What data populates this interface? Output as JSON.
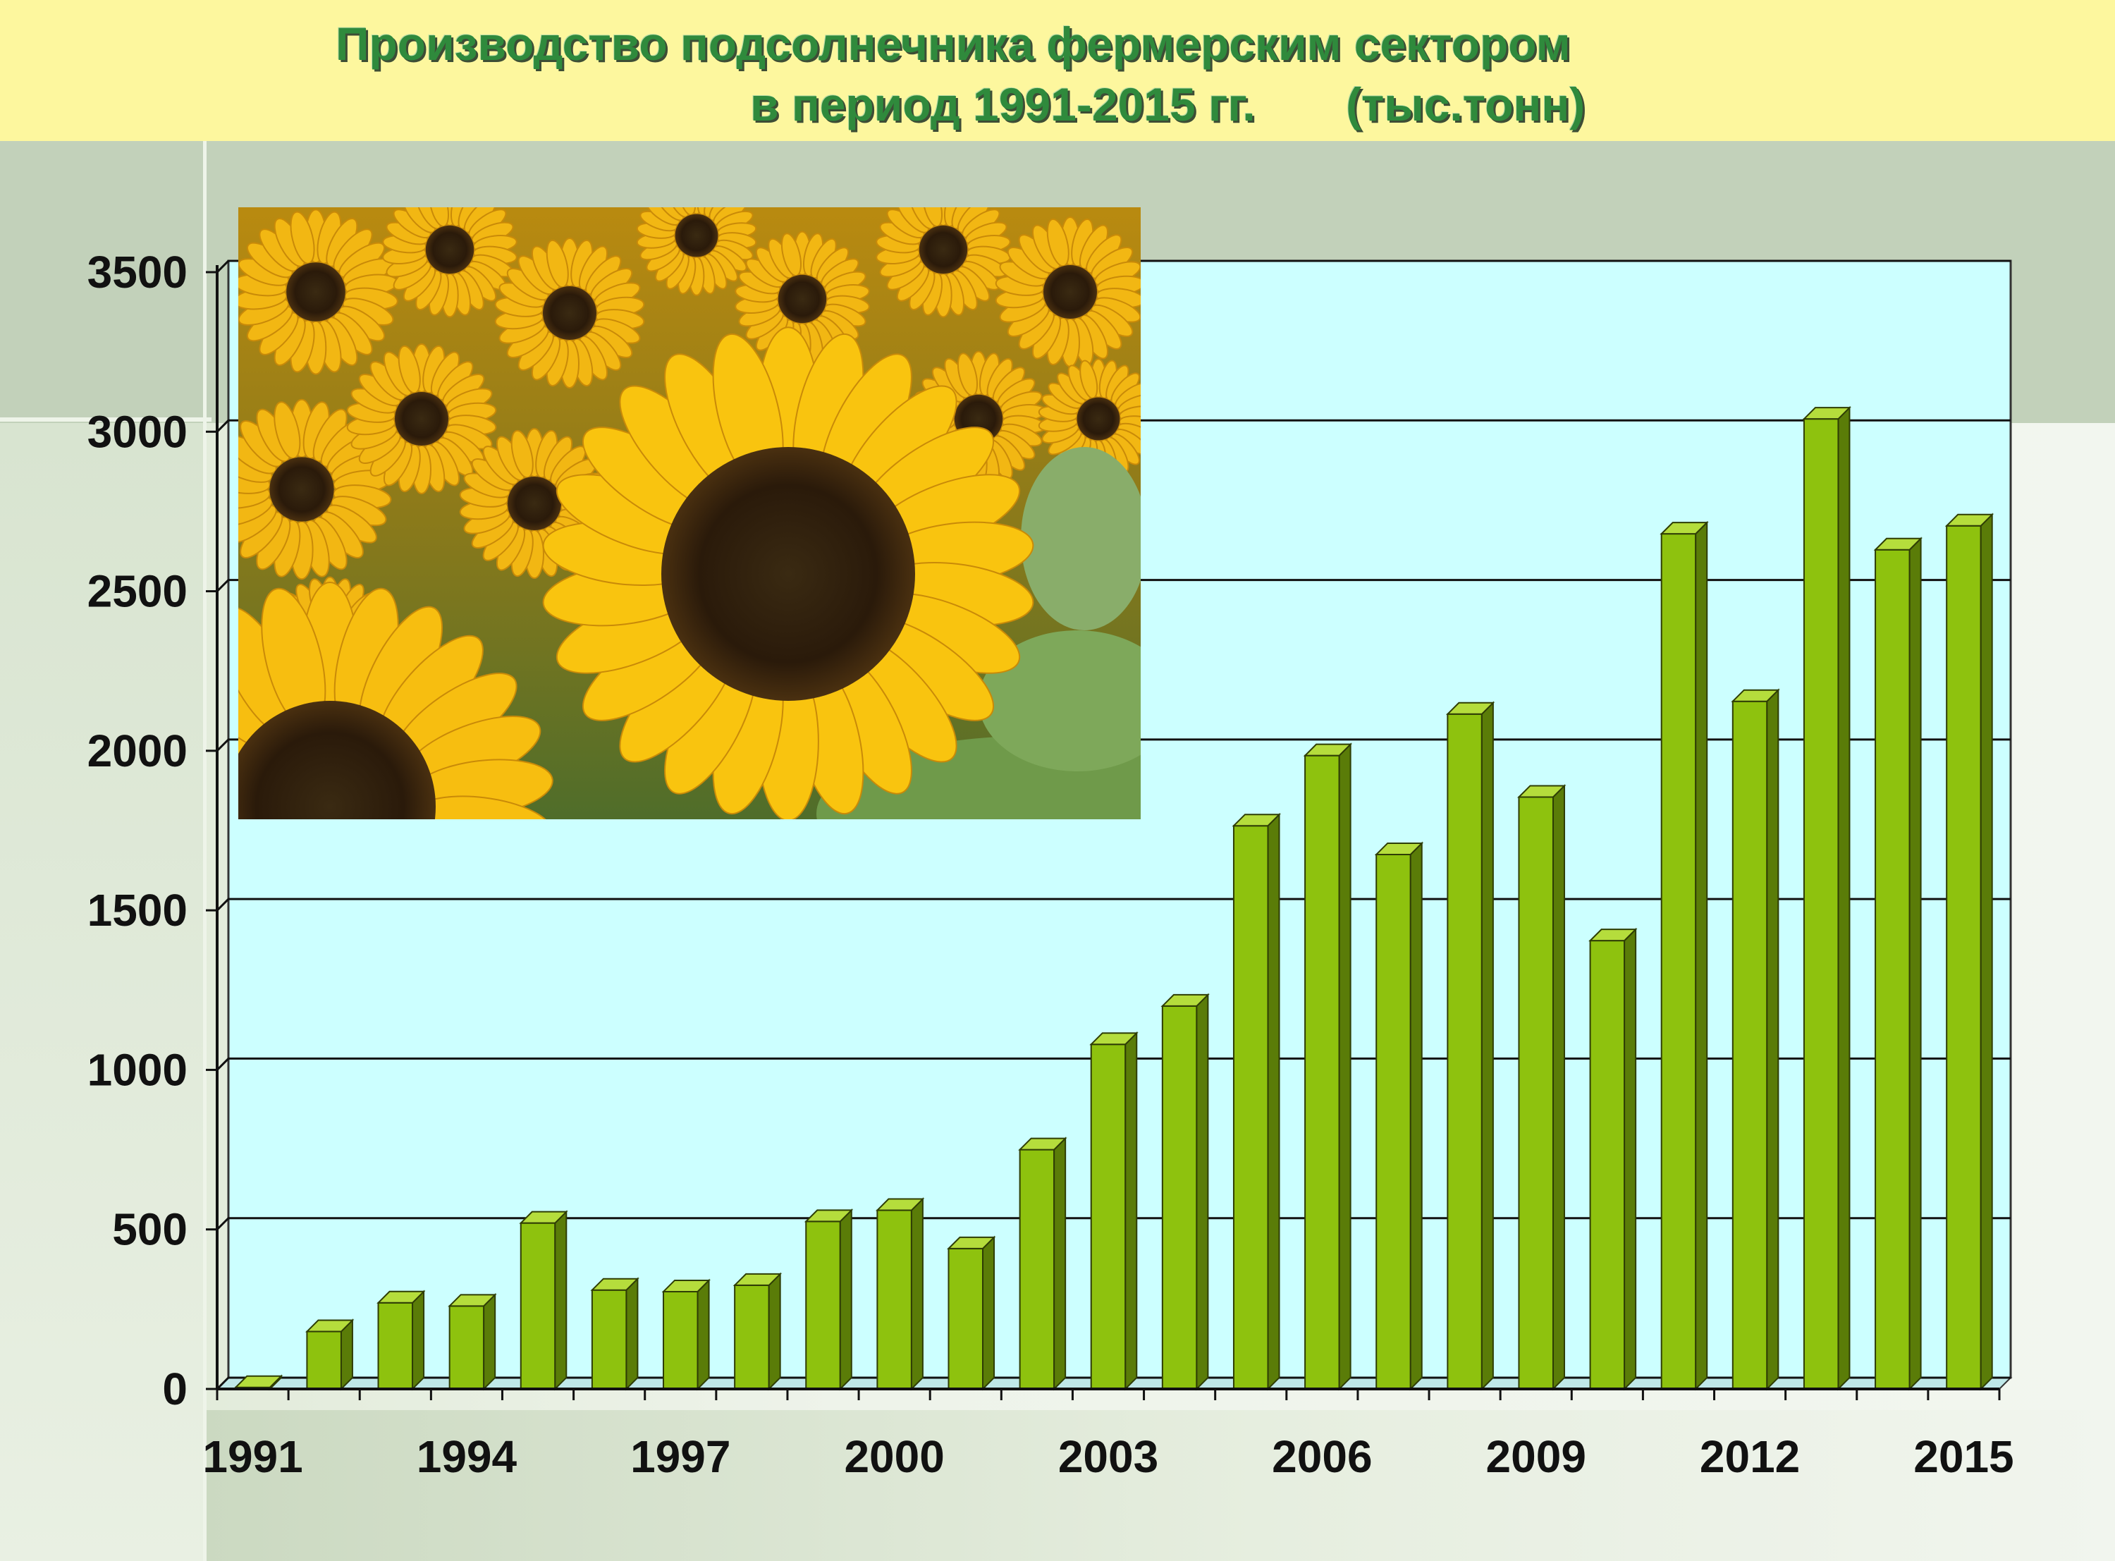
{
  "title": {
    "line1": "Производство подсолнечника фермерским сектором",
    "line2": "в период 1991-2015 гг.       (тыс.тонн)"
  },
  "colors": {
    "title_text": "#2f8a3c",
    "title_band": "#fdf79e",
    "plot_background": "#ccffff",
    "bar_front": "#8ec20e",
    "bar_side": "#5a7c08",
    "bar_top": "#b5dd3c"
  },
  "photo": {
    "description_icon": "sunflower-photo"
  },
  "chart_data": {
    "type": "bar",
    "title": "Производство подсолнечника фермерским сектором в период 1991-2015 гг. (тыс.тонн)",
    "xlabel": "",
    "ylabel": "",
    "ylim": [
      0,
      3500
    ],
    "yticks": [
      0,
      500,
      1000,
      1500,
      2000,
      2500,
      3000,
      3500
    ],
    "grid": true,
    "legend": "none",
    "x_tick_labels": [
      "1991",
      "1994",
      "1997",
      "2000",
      "2003",
      "2006",
      "2009",
      "2012",
      "2015"
    ],
    "categories": [
      "1991",
      "1992",
      "1993",
      "1994",
      "1995",
      "1996",
      "1997",
      "1998",
      "1999",
      "2000",
      "2001",
      "2002",
      "2003",
      "2004",
      "2005",
      "2006",
      "2007",
      "2008",
      "2009",
      "2010",
      "2011",
      "2012",
      "2013",
      "2014",
      "2015"
    ],
    "values": [
      5,
      180,
      270,
      260,
      520,
      310,
      305,
      325,
      525,
      560,
      440,
      750,
      1080,
      1200,
      1765,
      1985,
      1675,
      2115,
      1855,
      1405,
      2680,
      2155,
      3040,
      2630,
      2705
    ]
  }
}
